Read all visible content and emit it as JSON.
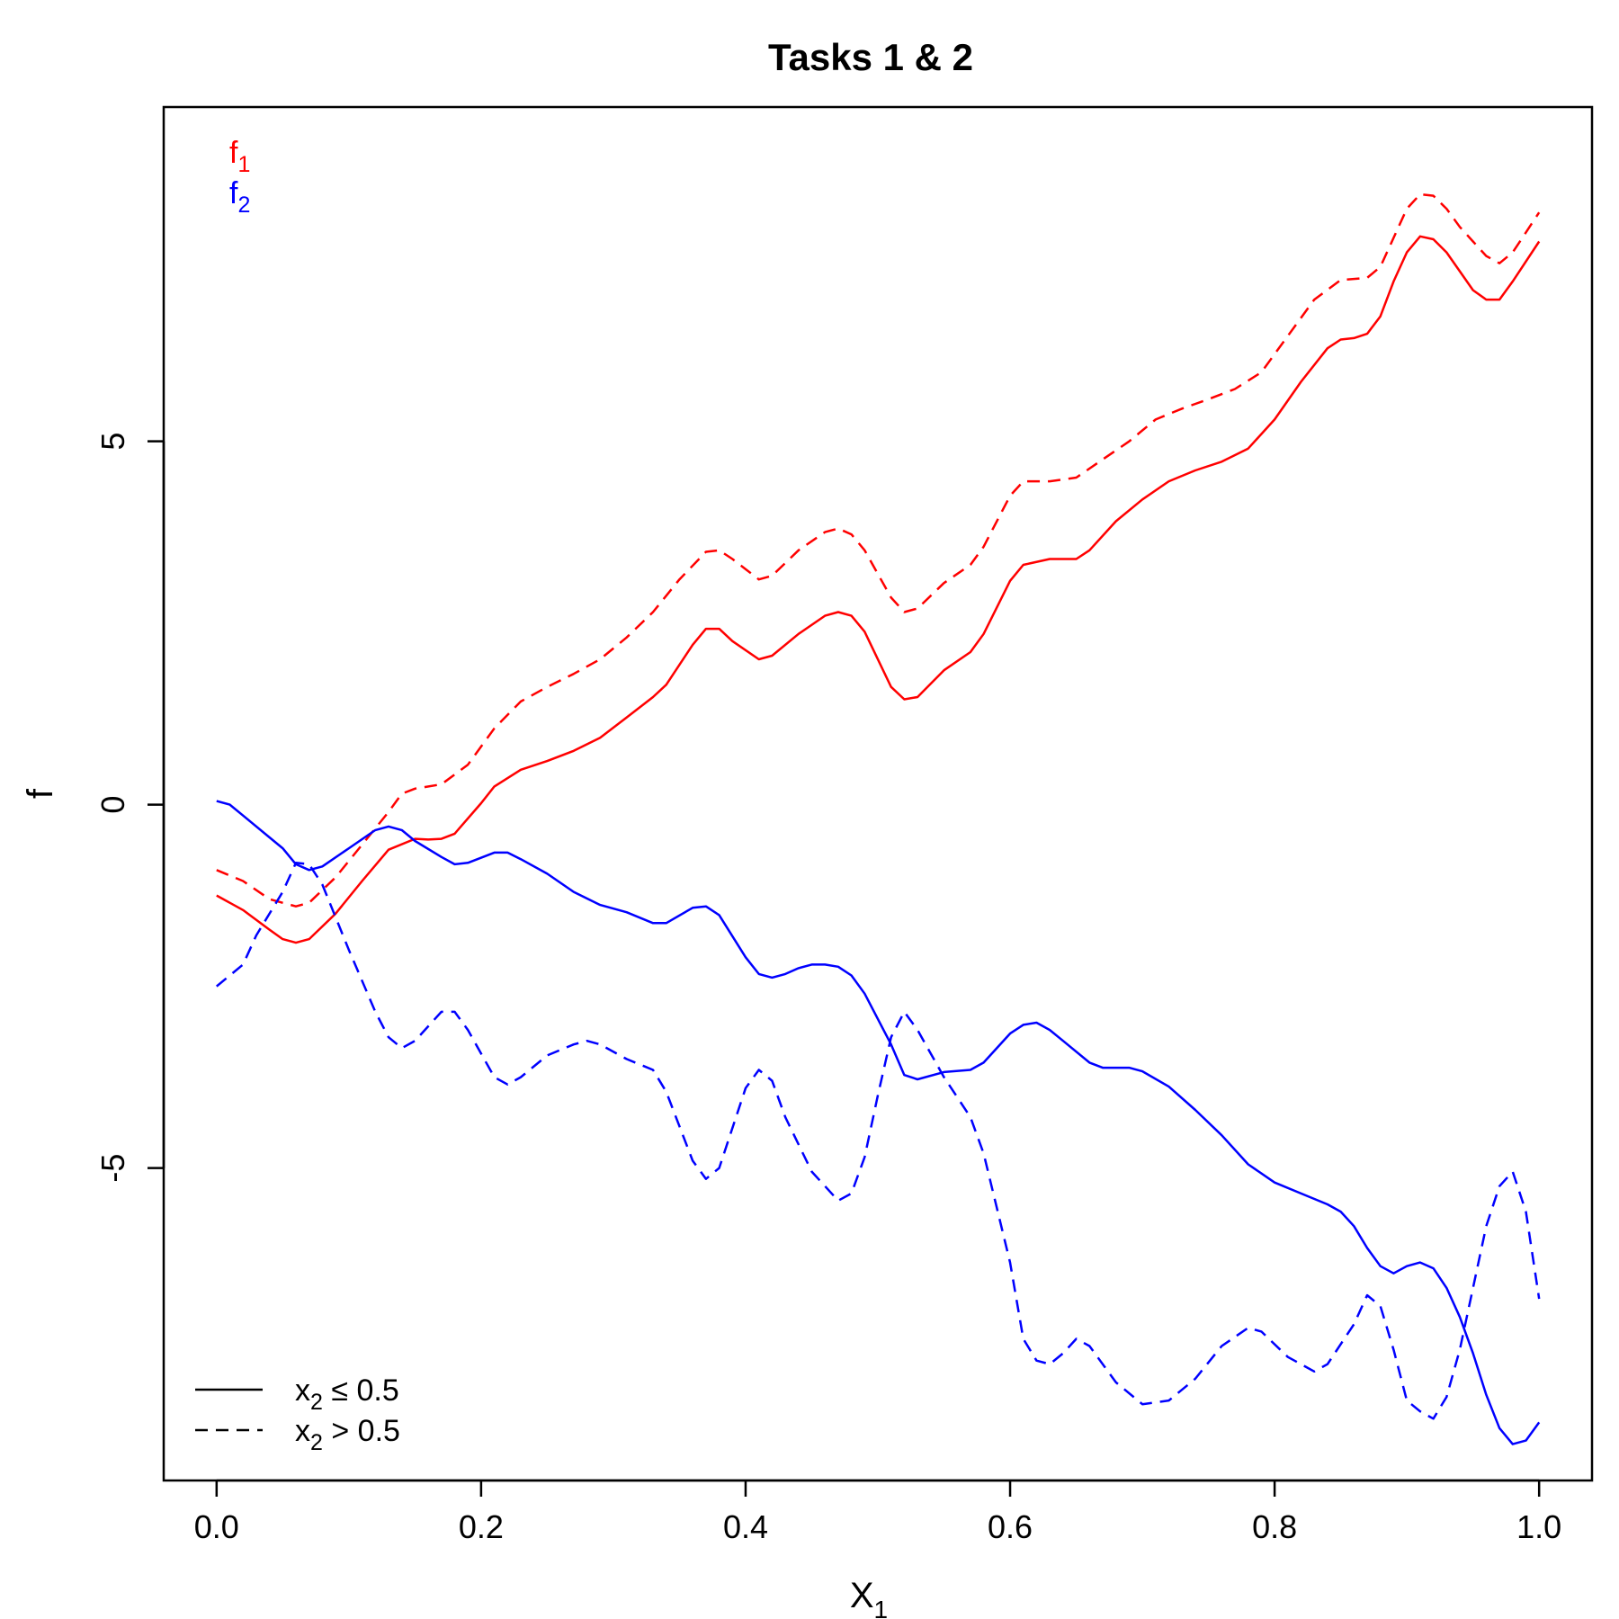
{
  "chart_data": {
    "type": "line",
    "title": "Tasks 1 & 2",
    "xlabel": "X",
    "xlabel_sub": "1",
    "ylabel": "f",
    "xlim": [
      -0.04,
      1.04
    ],
    "ylim": [
      -9.3,
      9.6
    ],
    "xticks": [
      0.0,
      0.2,
      0.4,
      0.6,
      0.8,
      1.0
    ],
    "xtick_labels": [
      "0.0",
      "0.2",
      "0.4",
      "0.6",
      "0.8",
      "1.0"
    ],
    "yticks": [
      -5,
      0,
      5
    ],
    "ytick_labels": [
      "-5",
      "0",
      "5"
    ],
    "grid": false,
    "colors": {
      "f1": "#ff0000",
      "f2": "#0000ff",
      "axis": "#000000"
    },
    "color_legend": {
      "placement": "top-left",
      "entries": [
        {
          "text": "f",
          "sub": "1",
          "color": "#ff0000"
        },
        {
          "text": "f",
          "sub": "2",
          "color": "#0000ff"
        }
      ]
    },
    "linetype_legend": {
      "placement": "bottom-left",
      "entries": [
        {
          "pre": "x",
          "sub": "2",
          "post": " ≤ 0.5",
          "dash": "solid"
        },
        {
          "pre": "x",
          "sub": "2",
          "post": " > 0.5",
          "dash": "dashed"
        }
      ]
    },
    "series": [
      {
        "task": "f1",
        "linetype": "solid",
        "color": "#ff0000",
        "points": [
          [
            0,
            -1.25
          ],
          [
            0.02,
            -1.45
          ],
          [
            0.04,
            -1.72
          ],
          [
            0.05,
            -1.85
          ],
          [
            0.06,
            -1.9
          ],
          [
            0.07,
            -1.85
          ],
          [
            0.09,
            -1.5
          ],
          [
            0.11,
            -1.05
          ],
          [
            0.13,
            -0.62
          ],
          [
            0.15,
            -0.47
          ],
          [
            0.16,
            -0.48
          ],
          [
            0.17,
            -0.47
          ],
          [
            0.18,
            -0.4
          ],
          [
            0.2,
            0.02
          ],
          [
            0.21,
            0.25
          ],
          [
            0.23,
            0.48
          ],
          [
            0.25,
            0.6
          ],
          [
            0.27,
            0.74
          ],
          [
            0.29,
            0.92
          ],
          [
            0.31,
            1.2
          ],
          [
            0.33,
            1.48
          ],
          [
            0.34,
            1.65
          ],
          [
            0.36,
            2.2
          ],
          [
            0.37,
            2.42
          ],
          [
            0.38,
            2.42
          ],
          [
            0.39,
            2.25
          ],
          [
            0.41,
            2.0
          ],
          [
            0.42,
            2.05
          ],
          [
            0.44,
            2.35
          ],
          [
            0.46,
            2.6
          ],
          [
            0.47,
            2.65
          ],
          [
            0.48,
            2.6
          ],
          [
            0.49,
            2.38
          ],
          [
            0.51,
            1.62
          ],
          [
            0.52,
            1.45
          ],
          [
            0.53,
            1.48
          ],
          [
            0.55,
            1.85
          ],
          [
            0.57,
            2.1
          ],
          [
            0.58,
            2.35
          ],
          [
            0.6,
            3.08
          ],
          [
            0.61,
            3.3
          ],
          [
            0.63,
            3.38
          ],
          [
            0.65,
            3.38
          ],
          [
            0.66,
            3.5
          ],
          [
            0.68,
            3.9
          ],
          [
            0.7,
            4.2
          ],
          [
            0.72,
            4.45
          ],
          [
            0.74,
            4.6
          ],
          [
            0.76,
            4.72
          ],
          [
            0.78,
            4.9
          ],
          [
            0.8,
            5.3
          ],
          [
            0.82,
            5.82
          ],
          [
            0.84,
            6.28
          ],
          [
            0.85,
            6.4
          ],
          [
            0.86,
            6.42
          ],
          [
            0.87,
            6.48
          ],
          [
            0.88,
            6.72
          ],
          [
            0.89,
            7.2
          ],
          [
            0.9,
            7.6
          ],
          [
            0.91,
            7.82
          ],
          [
            0.92,
            7.78
          ],
          [
            0.93,
            7.6
          ],
          [
            0.95,
            7.08
          ],
          [
            0.96,
            6.95
          ],
          [
            0.97,
            6.95
          ],
          [
            0.98,
            7.2
          ],
          [
            1.0,
            7.75
          ]
        ]
      },
      {
        "task": "f1",
        "linetype": "dashed",
        "color": "#ff0000",
        "points": [
          [
            0,
            -0.9
          ],
          [
            0.02,
            -1.05
          ],
          [
            0.04,
            -1.3
          ],
          [
            0.06,
            -1.4
          ],
          [
            0.07,
            -1.35
          ],
          [
            0.09,
            -1.0
          ],
          [
            0.11,
            -0.55
          ],
          [
            0.13,
            -0.1
          ],
          [
            0.14,
            0.15
          ],
          [
            0.15,
            0.22
          ],
          [
            0.17,
            0.28
          ],
          [
            0.19,
            0.55
          ],
          [
            0.21,
            1.05
          ],
          [
            0.23,
            1.42
          ],
          [
            0.25,
            1.62
          ],
          [
            0.27,
            1.8
          ],
          [
            0.29,
            2.0
          ],
          [
            0.31,
            2.3
          ],
          [
            0.33,
            2.65
          ],
          [
            0.35,
            3.1
          ],
          [
            0.37,
            3.48
          ],
          [
            0.38,
            3.5
          ],
          [
            0.39,
            3.38
          ],
          [
            0.41,
            3.1
          ],
          [
            0.42,
            3.15
          ],
          [
            0.44,
            3.5
          ],
          [
            0.46,
            3.75
          ],
          [
            0.47,
            3.8
          ],
          [
            0.48,
            3.72
          ],
          [
            0.49,
            3.5
          ],
          [
            0.51,
            2.85
          ],
          [
            0.52,
            2.65
          ],
          [
            0.53,
            2.7
          ],
          [
            0.55,
            3.05
          ],
          [
            0.57,
            3.3
          ],
          [
            0.58,
            3.55
          ],
          [
            0.6,
            4.25
          ],
          [
            0.61,
            4.45
          ],
          [
            0.63,
            4.45
          ],
          [
            0.65,
            4.5
          ],
          [
            0.67,
            4.75
          ],
          [
            0.69,
            5.0
          ],
          [
            0.71,
            5.3
          ],
          [
            0.73,
            5.45
          ],
          [
            0.75,
            5.58
          ],
          [
            0.77,
            5.72
          ],
          [
            0.79,
            5.95
          ],
          [
            0.81,
            6.45
          ],
          [
            0.83,
            6.95
          ],
          [
            0.85,
            7.22
          ],
          [
            0.87,
            7.25
          ],
          [
            0.88,
            7.4
          ],
          [
            0.89,
            7.8
          ],
          [
            0.9,
            8.2
          ],
          [
            0.91,
            8.4
          ],
          [
            0.92,
            8.38
          ],
          [
            0.93,
            8.2
          ],
          [
            0.94,
            7.95
          ],
          [
            0.95,
            7.75
          ],
          [
            0.96,
            7.55
          ],
          [
            0.97,
            7.45
          ],
          [
            0.98,
            7.6
          ],
          [
            1.0,
            8.15
          ]
        ]
      },
      {
        "task": "f2",
        "linetype": "solid",
        "color": "#0000ff",
        "points": [
          [
            0,
            0.05
          ],
          [
            0.01,
            0.0
          ],
          [
            0.02,
            -0.15
          ],
          [
            0.04,
            -0.45
          ],
          [
            0.05,
            -0.6
          ],
          [
            0.06,
            -0.82
          ],
          [
            0.07,
            -0.9
          ],
          [
            0.08,
            -0.85
          ],
          [
            0.1,
            -0.6
          ],
          [
            0.12,
            -0.35
          ],
          [
            0.13,
            -0.3
          ],
          [
            0.14,
            -0.35
          ],
          [
            0.15,
            -0.5
          ],
          [
            0.17,
            -0.72
          ],
          [
            0.18,
            -0.82
          ],
          [
            0.19,
            -0.8
          ],
          [
            0.21,
            -0.66
          ],
          [
            0.22,
            -0.66
          ],
          [
            0.23,
            -0.75
          ],
          [
            0.25,
            -0.95
          ],
          [
            0.27,
            -1.2
          ],
          [
            0.29,
            -1.38
          ],
          [
            0.31,
            -1.48
          ],
          [
            0.33,
            -1.63
          ],
          [
            0.34,
            -1.63
          ],
          [
            0.36,
            -1.42
          ],
          [
            0.37,
            -1.4
          ],
          [
            0.38,
            -1.52
          ],
          [
            0.4,
            -2.1
          ],
          [
            0.41,
            -2.33
          ],
          [
            0.42,
            -2.38
          ],
          [
            0.43,
            -2.33
          ],
          [
            0.44,
            -2.25
          ],
          [
            0.45,
            -2.2
          ],
          [
            0.46,
            -2.2
          ],
          [
            0.47,
            -2.23
          ],
          [
            0.48,
            -2.35
          ],
          [
            0.49,
            -2.6
          ],
          [
            0.51,
            -3.3
          ],
          [
            0.52,
            -3.72
          ],
          [
            0.53,
            -3.78
          ],
          [
            0.55,
            -3.68
          ],
          [
            0.57,
            -3.65
          ],
          [
            0.58,
            -3.55
          ],
          [
            0.6,
            -3.15
          ],
          [
            0.61,
            -3.03
          ],
          [
            0.62,
            -3.0
          ],
          [
            0.63,
            -3.1
          ],
          [
            0.64,
            -3.25
          ],
          [
            0.66,
            -3.55
          ],
          [
            0.67,
            -3.62
          ],
          [
            0.69,
            -3.62
          ],
          [
            0.7,
            -3.67
          ],
          [
            0.72,
            -3.88
          ],
          [
            0.74,
            -4.2
          ],
          [
            0.76,
            -4.55
          ],
          [
            0.78,
            -4.95
          ],
          [
            0.8,
            -5.2
          ],
          [
            0.82,
            -5.35
          ],
          [
            0.84,
            -5.5
          ],
          [
            0.85,
            -5.6
          ],
          [
            0.86,
            -5.8
          ],
          [
            0.87,
            -6.1
          ],
          [
            0.88,
            -6.35
          ],
          [
            0.89,
            -6.45
          ],
          [
            0.9,
            -6.35
          ],
          [
            0.91,
            -6.3
          ],
          [
            0.92,
            -6.38
          ],
          [
            0.93,
            -6.65
          ],
          [
            0.94,
            -7.05
          ],
          [
            0.95,
            -7.55
          ],
          [
            0.96,
            -8.12
          ],
          [
            0.97,
            -8.58
          ],
          [
            0.98,
            -8.8
          ],
          [
            0.99,
            -8.75
          ],
          [
            1.0,
            -8.5
          ]
        ]
      },
      {
        "task": "f2",
        "linetype": "dashed",
        "color": "#0000ff",
        "points": [
          [
            0,
            -2.5
          ],
          [
            0.02,
            -2.2
          ],
          [
            0.03,
            -1.8
          ],
          [
            0.05,
            -1.2
          ],
          [
            0.06,
            -0.8
          ],
          [
            0.07,
            -0.82
          ],
          [
            0.08,
            -1.1
          ],
          [
            0.1,
            -2.0
          ],
          [
            0.12,
            -2.85
          ],
          [
            0.13,
            -3.2
          ],
          [
            0.14,
            -3.35
          ],
          [
            0.15,
            -3.25
          ],
          [
            0.17,
            -2.85
          ],
          [
            0.18,
            -2.85
          ],
          [
            0.19,
            -3.1
          ],
          [
            0.21,
            -3.75
          ],
          [
            0.22,
            -3.85
          ],
          [
            0.23,
            -3.75
          ],
          [
            0.25,
            -3.45
          ],
          [
            0.27,
            -3.3
          ],
          [
            0.28,
            -3.25
          ],
          [
            0.29,
            -3.3
          ],
          [
            0.31,
            -3.5
          ],
          [
            0.33,
            -3.65
          ],
          [
            0.34,
            -3.95
          ],
          [
            0.36,
            -4.9
          ],
          [
            0.37,
            -5.15
          ],
          [
            0.38,
            -5.0
          ],
          [
            0.4,
            -3.9
          ],
          [
            0.41,
            -3.65
          ],
          [
            0.42,
            -3.8
          ],
          [
            0.43,
            -4.3
          ],
          [
            0.45,
            -5.05
          ],
          [
            0.47,
            -5.45
          ],
          [
            0.48,
            -5.35
          ],
          [
            0.49,
            -4.85
          ],
          [
            0.5,
            -4.0
          ],
          [
            0.51,
            -3.2
          ],
          [
            0.52,
            -2.85
          ],
          [
            0.53,
            -3.1
          ],
          [
            0.55,
            -3.75
          ],
          [
            0.57,
            -4.3
          ],
          [
            0.58,
            -4.8
          ],
          [
            0.6,
            -6.3
          ],
          [
            0.61,
            -7.35
          ],
          [
            0.62,
            -7.65
          ],
          [
            0.63,
            -7.7
          ],
          [
            0.64,
            -7.55
          ],
          [
            0.65,
            -7.35
          ],
          [
            0.66,
            -7.45
          ],
          [
            0.68,
            -7.95
          ],
          [
            0.7,
            -8.25
          ],
          [
            0.72,
            -8.2
          ],
          [
            0.74,
            -7.9
          ],
          [
            0.76,
            -7.45
          ],
          [
            0.78,
            -7.2
          ],
          [
            0.79,
            -7.25
          ],
          [
            0.81,
            -7.6
          ],
          [
            0.83,
            -7.8
          ],
          [
            0.84,
            -7.7
          ],
          [
            0.86,
            -7.15
          ],
          [
            0.87,
            -6.75
          ],
          [
            0.88,
            -6.9
          ],
          [
            0.89,
            -7.5
          ],
          [
            0.9,
            -8.2
          ],
          [
            0.91,
            -8.35
          ],
          [
            0.92,
            -8.45
          ],
          [
            0.93,
            -8.15
          ],
          [
            0.94,
            -7.5
          ],
          [
            0.95,
            -6.65
          ],
          [
            0.96,
            -5.8
          ],
          [
            0.97,
            -5.25
          ],
          [
            0.98,
            -5.05
          ],
          [
            0.99,
            -5.6
          ],
          [
            1.0,
            -6.8
          ]
        ]
      }
    ]
  }
}
